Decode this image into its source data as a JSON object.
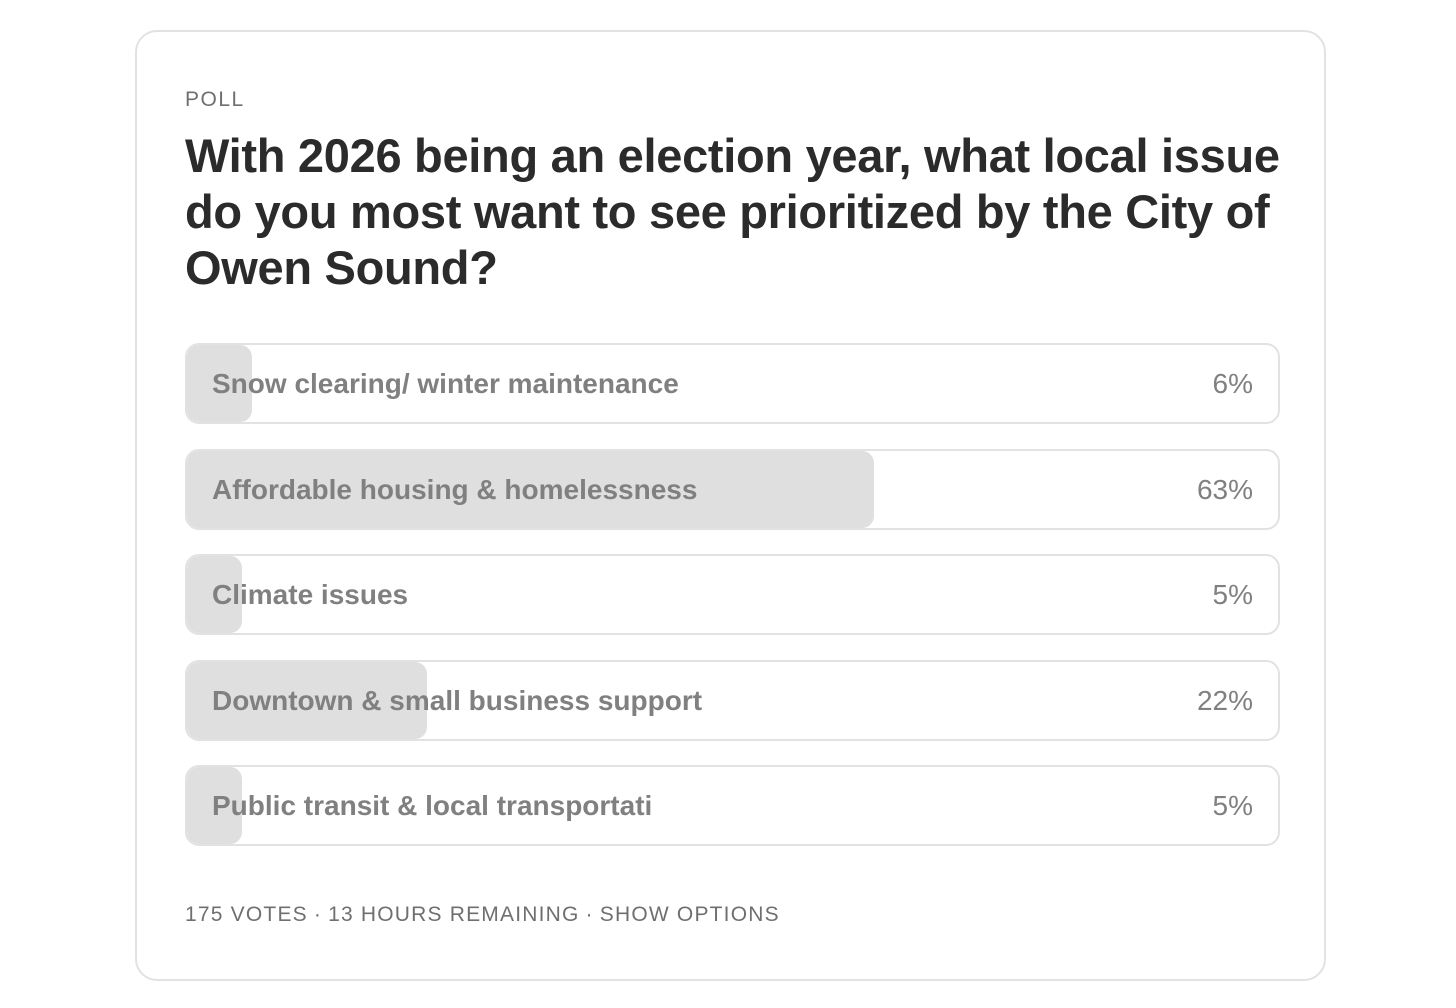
{
  "poll": {
    "label": "POLL",
    "question": "With 2026 being an election year, what local issue do you most want to see prioritized by the City of Owen Sound?",
    "options": [
      {
        "label": "Snow clearing/ winter maintenance",
        "percent_text": "6%",
        "percent": 6
      },
      {
        "label": "Affordable housing & homelessness",
        "percent_text": "63%",
        "percent": 63
      },
      {
        "label": "Climate issues",
        "percent_text": "5%",
        "percent": 5
      },
      {
        "label": "Downtown & small business support",
        "percent_text": "22%",
        "percent": 22
      },
      {
        "label": "Public transit & local transportati",
        "percent_text": "5%",
        "percent": 5
      }
    ],
    "footer": {
      "votes": "175 VOTES",
      "separator": "·",
      "remaining": "13 HOURS REMAINING",
      "show_options": "SHOW OPTIONS"
    }
  },
  "colors": {
    "fill": "#dfdfdf",
    "border": "#e2e2e2",
    "question_text": "#2b2b2b",
    "option_text": "#808080",
    "meta_text": "#6f6f6f"
  }
}
